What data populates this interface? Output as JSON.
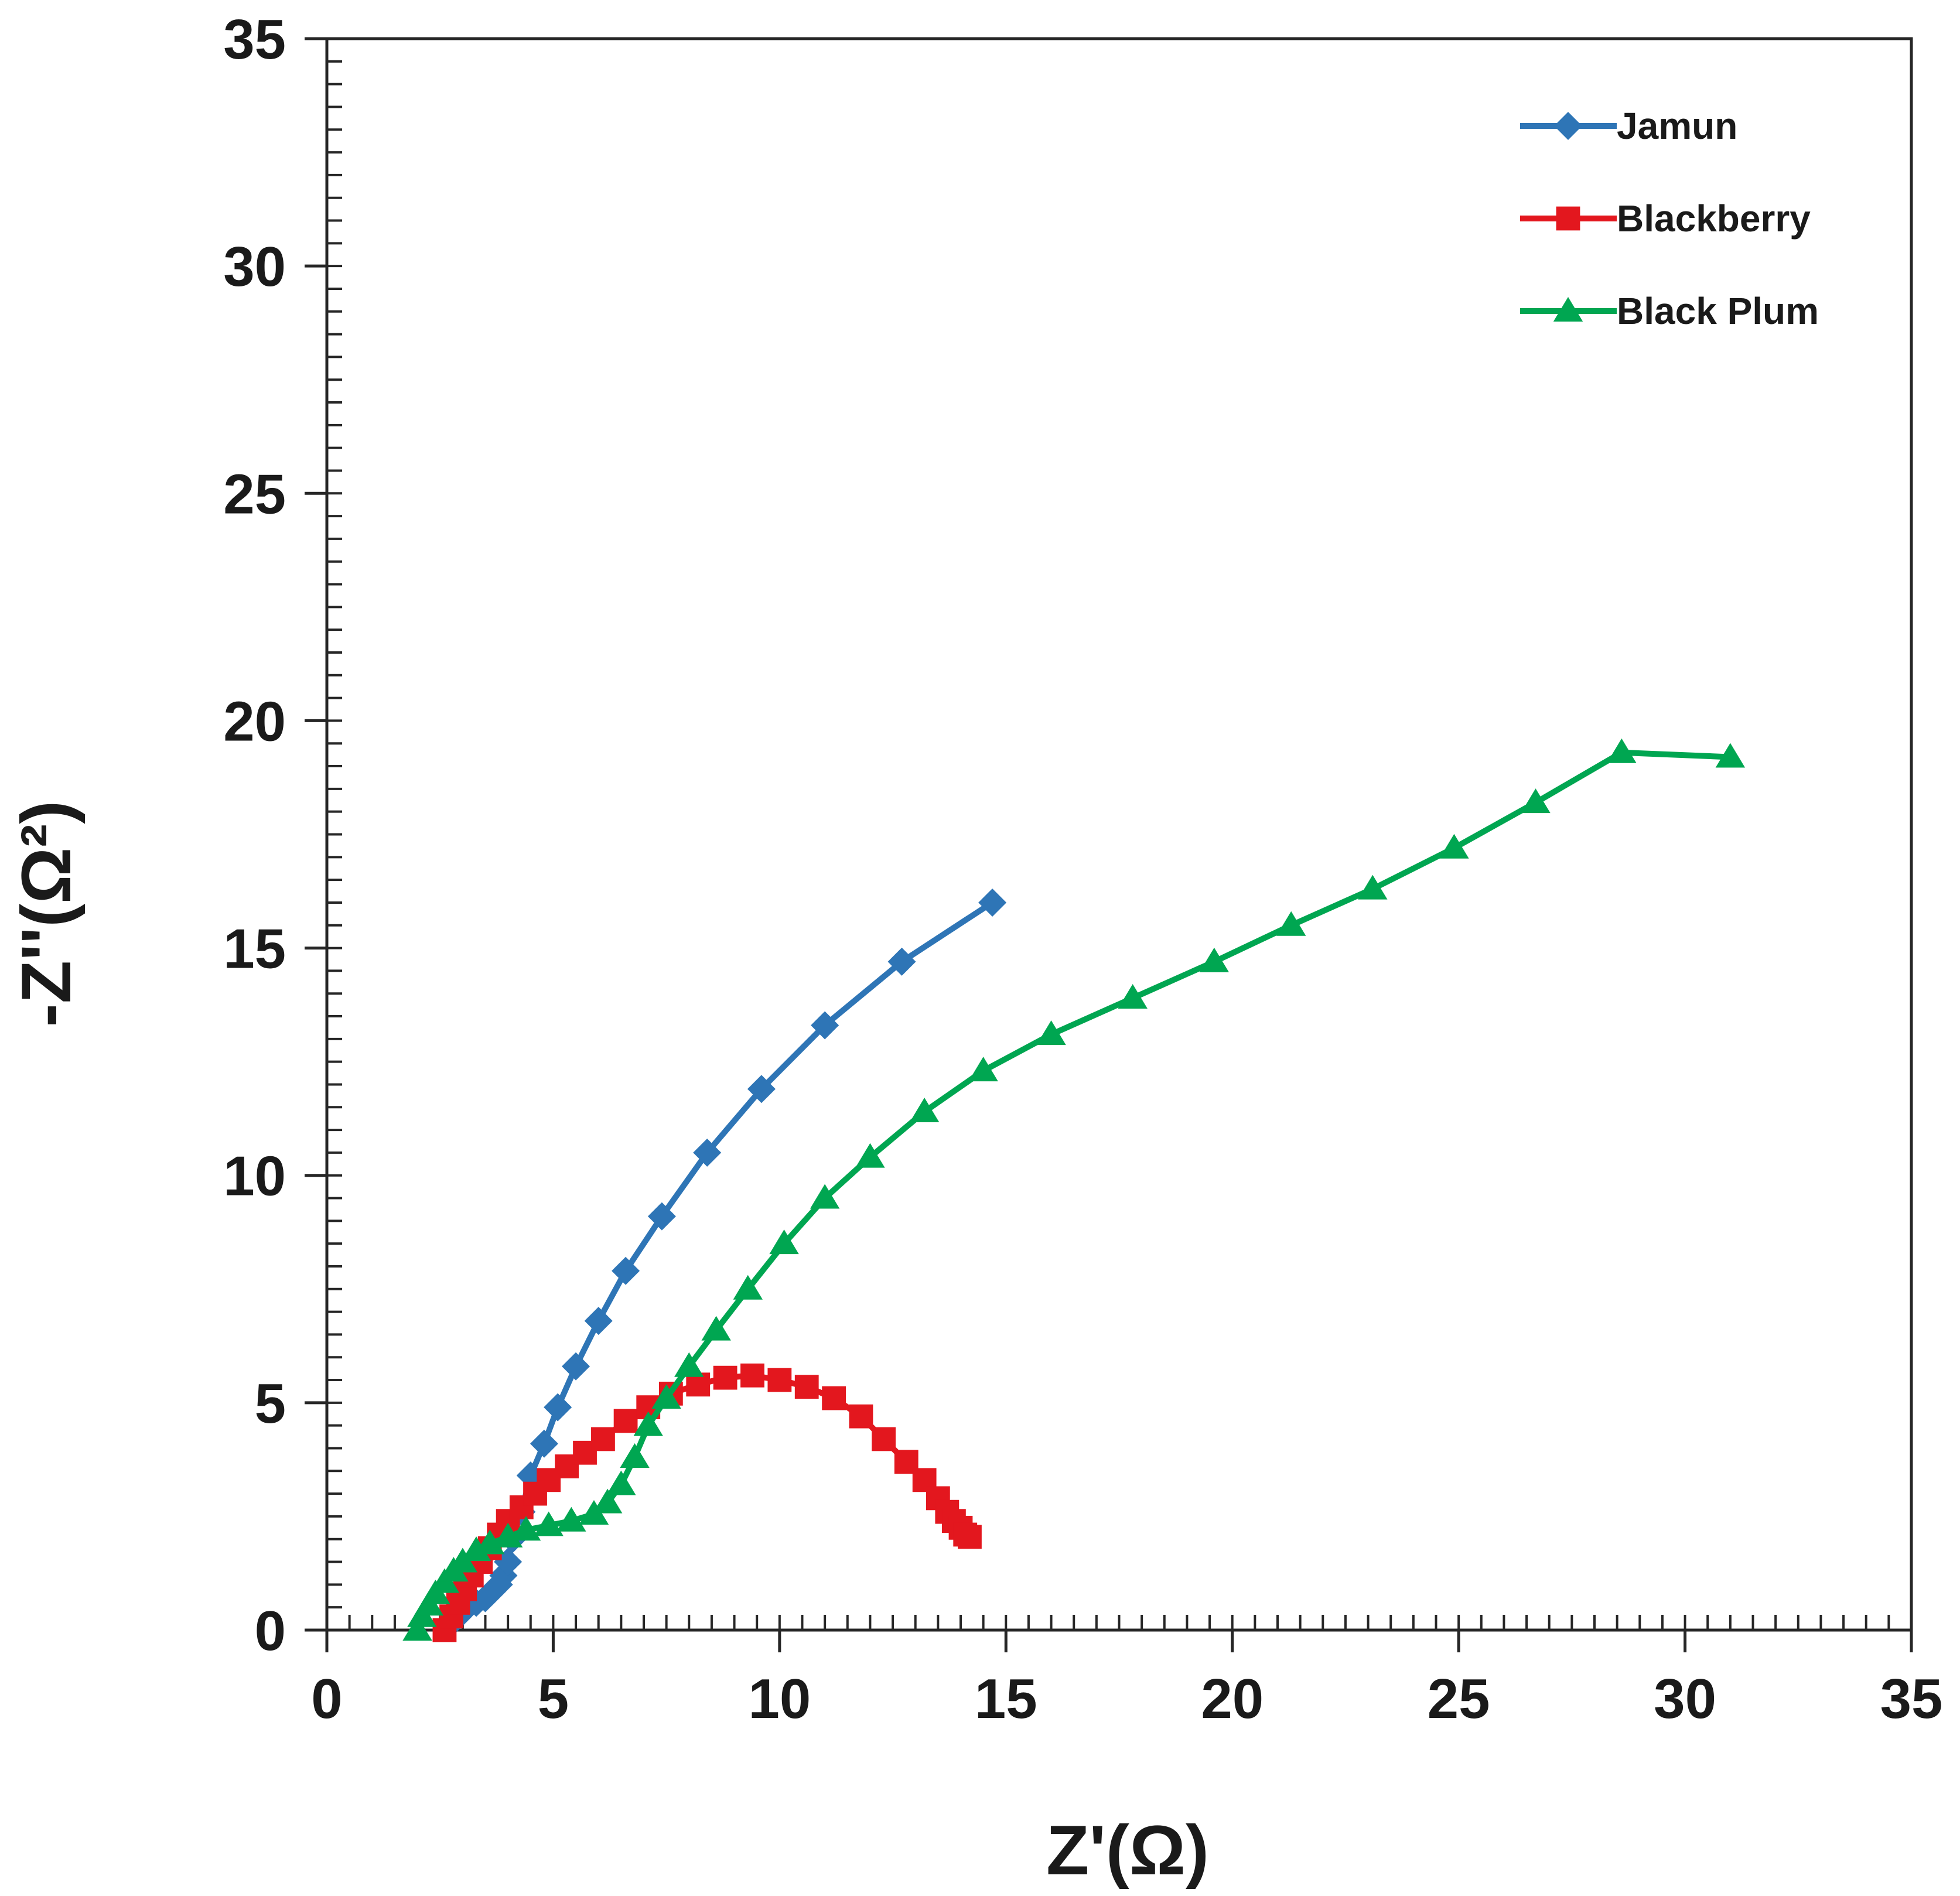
{
  "chart_data": {
    "type": "line",
    "title": "",
    "xlabel": "Z'(Ω)",
    "ylabel": "-Z''(Ω²)",
    "xlim": [
      0,
      35
    ],
    "ylim": [
      0,
      35
    ],
    "x_ticks": [
      0,
      5,
      10,
      15,
      20,
      25,
      30,
      35
    ],
    "y_ticks": [
      0,
      5,
      10,
      15,
      20,
      25,
      30,
      35
    ],
    "x_tick_labels": [
      "0",
      "5",
      "10",
      "15",
      "20",
      "25",
      "30",
      "35"
    ],
    "y_tick_labels": [
      "0",
      "5",
      "10",
      "15",
      "20",
      "25",
      "30",
      "35"
    ],
    "minor_tick_step": 0.5,
    "grid": false,
    "legend_position": "top-right",
    "series": [
      {
        "name": "Jamun",
        "color": "#2E75B6",
        "marker": "diamond",
        "x": [
          2.7,
          2.9,
          3.1,
          3.3,
          3.5,
          3.65,
          3.8,
          3.9,
          4.0,
          4.1,
          4.3,
          4.5,
          4.8,
          5.1,
          5.5,
          6.0,
          6.6,
          7.4,
          8.4,
          9.6,
          11.0,
          12.7,
          14.7
        ],
        "y": [
          0.1,
          0.3,
          0.5,
          0.6,
          0.7,
          0.85,
          1.0,
          1.2,
          1.5,
          2.0,
          2.6,
          3.4,
          4.1,
          4.9,
          5.8,
          6.8,
          7.9,
          9.1,
          10.5,
          11.9,
          13.3,
          14.7,
          16.0
        ]
      },
      {
        "name": "Blackberry",
        "color": "#E3171E",
        "marker": "square",
        "x": [
          2.6,
          2.75,
          2.9,
          3.05,
          3.2,
          3.4,
          3.6,
          3.8,
          4.0,
          4.3,
          4.6,
          4.9,
          5.3,
          5.7,
          6.1,
          6.6,
          7.1,
          7.6,
          8.2,
          8.8,
          9.4,
          10.0,
          10.6,
          11.2,
          11.8,
          12.3,
          12.8,
          13.2,
          13.5,
          13.7,
          13.85,
          14.0,
          14.1,
          14.2
        ],
        "y": [
          0.0,
          0.3,
          0.6,
          0.9,
          1.2,
          1.5,
          1.8,
          2.1,
          2.4,
          2.7,
          3.0,
          3.3,
          3.6,
          3.9,
          4.2,
          4.6,
          4.9,
          5.2,
          5.4,
          5.55,
          5.6,
          5.5,
          5.35,
          5.1,
          4.7,
          4.2,
          3.7,
          3.3,
          2.9,
          2.6,
          2.4,
          2.25,
          2.1,
          2.05
        ]
      },
      {
        "name": "Black Plum",
        "color": "#00A651",
        "marker": "triangle",
        "x": [
          2.0,
          2.1,
          2.25,
          2.4,
          2.6,
          2.8,
          3.0,
          3.3,
          3.6,
          4.0,
          4.4,
          4.9,
          5.4,
          5.9,
          6.2,
          6.5,
          6.8,
          7.1,
          7.5,
          8.0,
          8.6,
          9.3,
          10.1,
          11.0,
          12.0,
          13.2,
          14.5,
          16.0,
          17.8,
          19.6,
          21.3,
          23.1,
          24.9,
          26.7,
          28.6,
          31.0
        ],
        "y": [
          0.0,
          0.3,
          0.55,
          0.8,
          1.05,
          1.3,
          1.5,
          1.75,
          1.9,
          2.05,
          2.2,
          2.3,
          2.4,
          2.55,
          2.8,
          3.2,
          3.8,
          4.5,
          5.1,
          5.8,
          6.6,
          7.5,
          8.5,
          9.5,
          10.4,
          11.4,
          12.3,
          13.1,
          13.9,
          14.7,
          15.5,
          16.3,
          17.2,
          18.2,
          19.3,
          19.2
        ]
      }
    ]
  }
}
